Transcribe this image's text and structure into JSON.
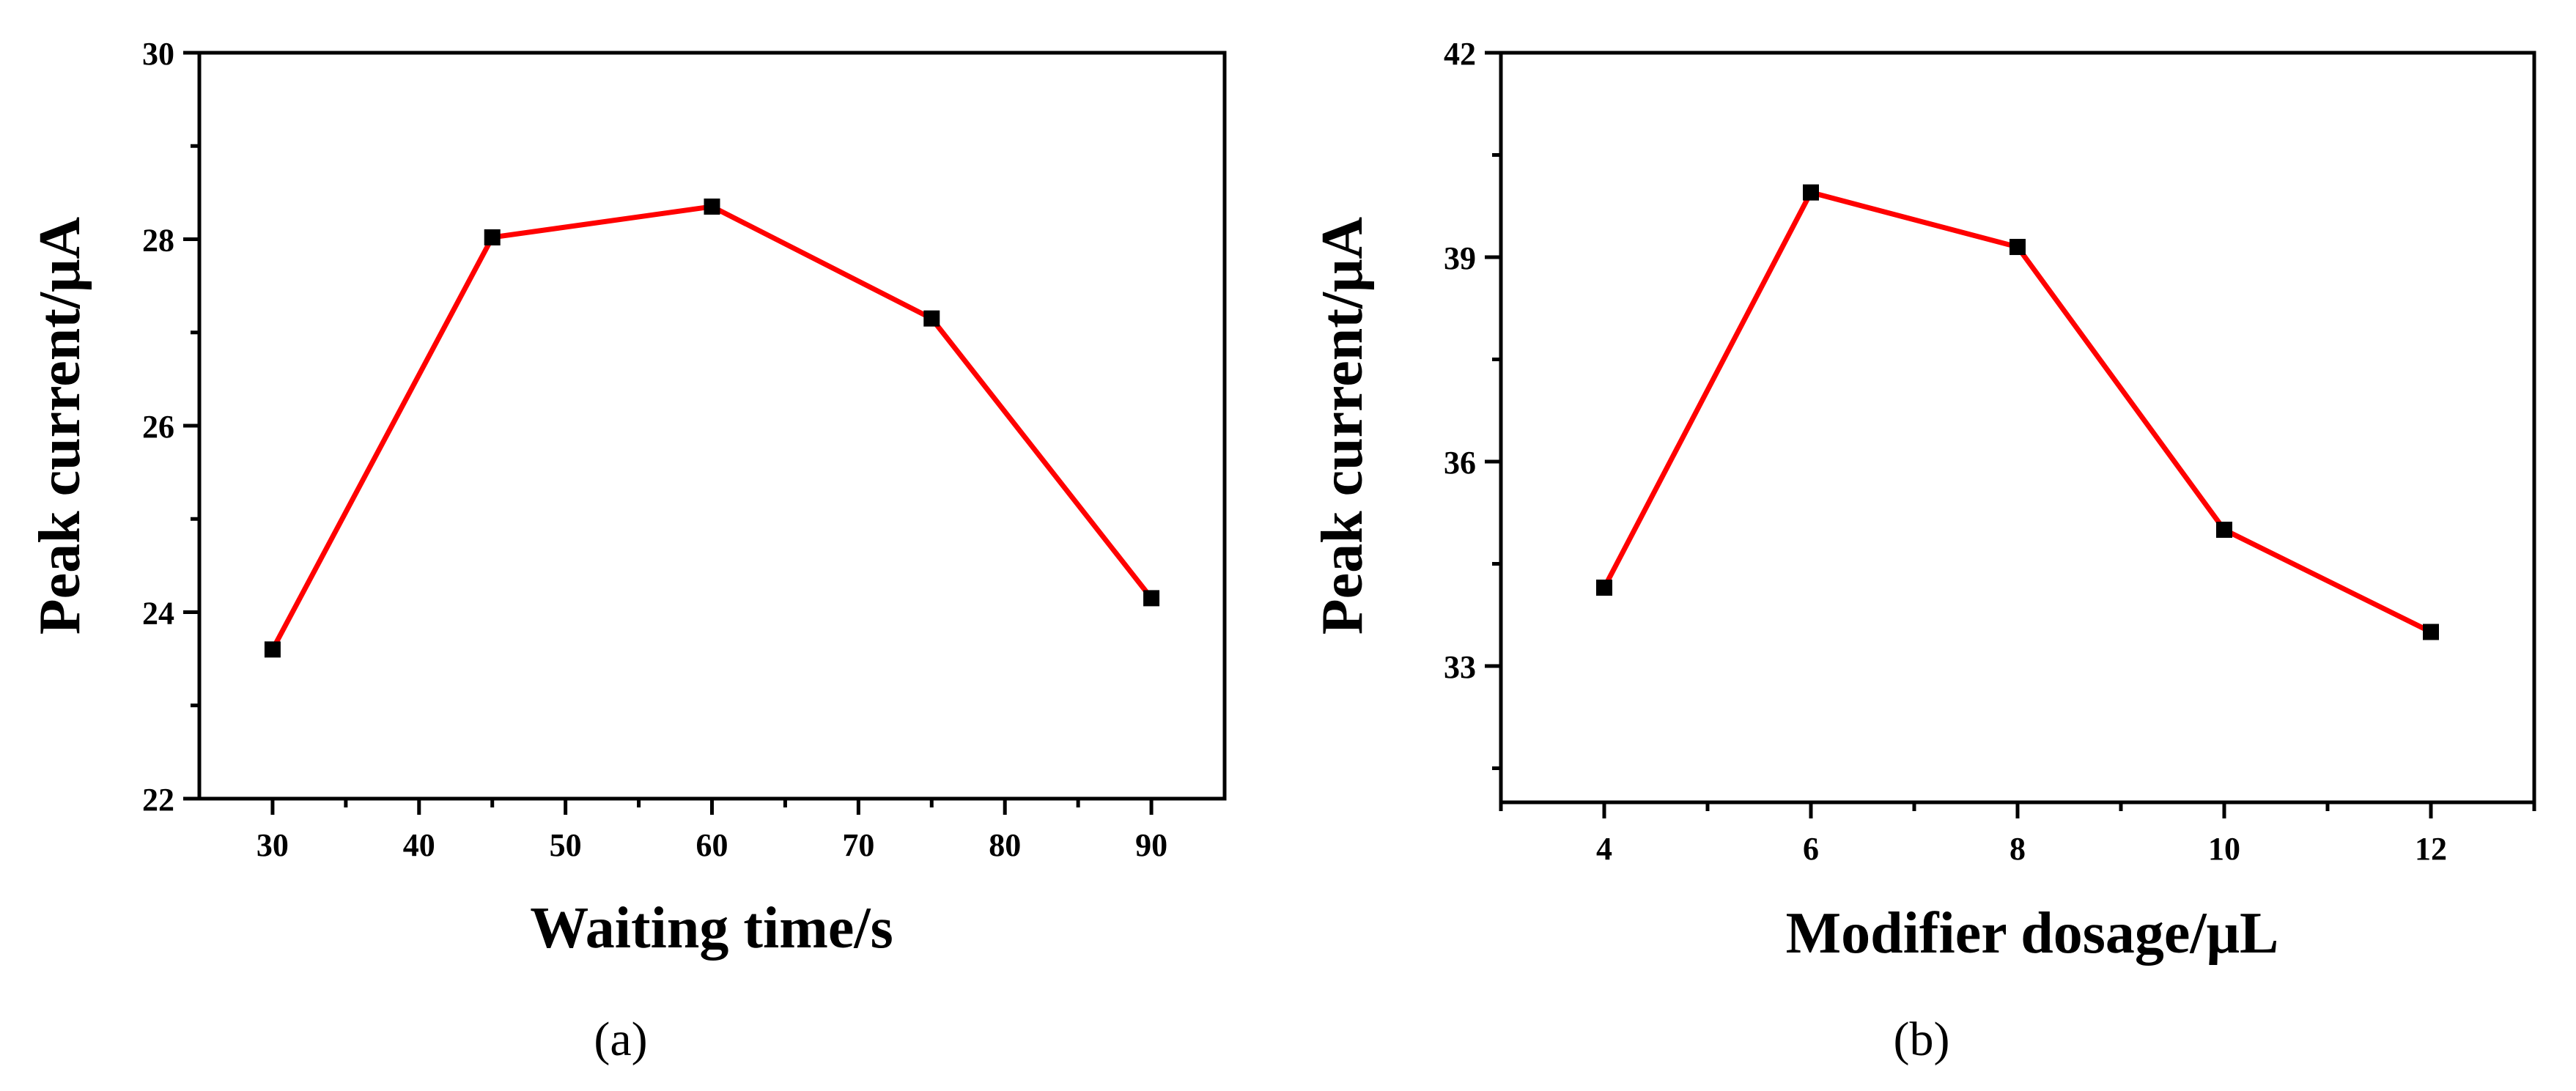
{
  "colors": {
    "line": "#ff0000",
    "marker": "#000000",
    "axis": "#000000"
  },
  "chart_data": [
    {
      "type": "line",
      "panel_label": "(a)",
      "xlabel": "Waiting time/s",
      "ylabel": "Peak current/μA",
      "x": [
        30,
        45,
        60,
        75,
        90
      ],
      "y": [
        23.6,
        28.02,
        28.35,
        27.15,
        24.15
      ],
      "xlim": [
        25,
        95
      ],
      "ylim": [
        22,
        30
      ],
      "xticks": [
        30,
        40,
        50,
        60,
        70,
        80,
        90
      ],
      "xtick_labels": [
        "30",
        "40",
        "50",
        "60",
        "70",
        "80",
        "90"
      ],
      "xminor": [
        35,
        45,
        55,
        65,
        75,
        85
      ],
      "yticks": [
        22,
        24,
        26,
        28,
        30
      ],
      "ytick_labels": [
        "22",
        "24",
        "26",
        "28",
        "30"
      ],
      "yminor": [
        23,
        25,
        27,
        29
      ],
      "marker": "square",
      "grid": false
    },
    {
      "type": "line",
      "panel_label": "(b)",
      "xlabel": "Modifier dosage/μL",
      "ylabel": "Peak current/μA",
      "x": [
        4,
        6,
        8,
        10,
        12
      ],
      "y": [
        34.15,
        39.95,
        39.15,
        35.0,
        33.5
      ],
      "xlim": [
        3,
        13
      ],
      "ylim": [
        31,
        42
      ],
      "xticks": [
        4,
        6,
        8,
        10,
        12
      ],
      "xtick_labels": [
        "4",
        "6",
        "8",
        "10",
        "12"
      ],
      "xminor": [
        3,
        5,
        7,
        9,
        11,
        13
      ],
      "yticks": [
        33,
        36,
        39,
        42
      ],
      "ytick_labels": [
        "33",
        "36",
        "39",
        "42"
      ],
      "yminor": [
        31.5,
        34.5,
        37.5,
        40.5
      ],
      "marker": "square",
      "grid": false
    }
  ]
}
